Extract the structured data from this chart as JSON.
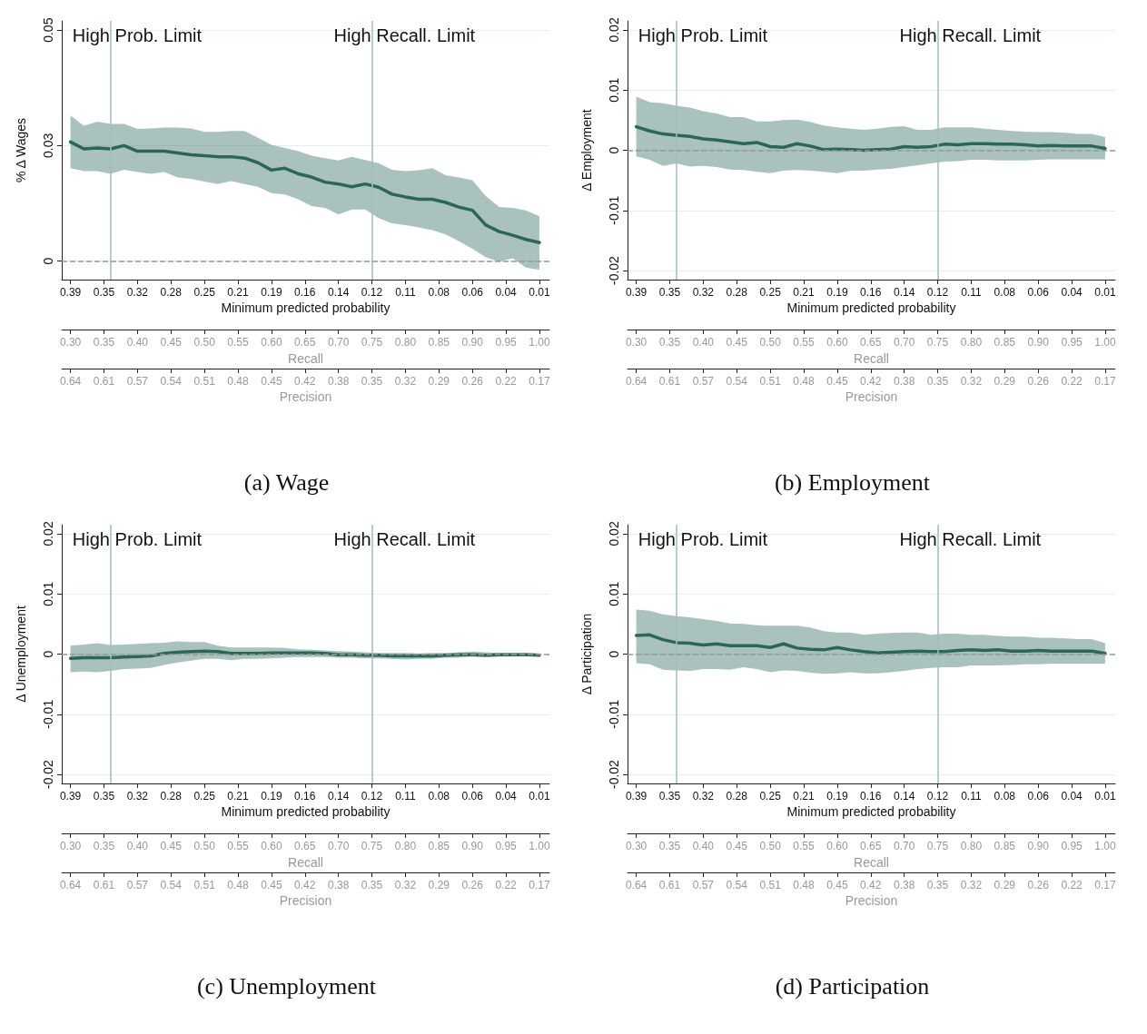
{
  "chart_data": [
    {
      "type": "line",
      "title": "(a) Wage",
      "ylabel": "% Δ Wages",
      "xlabel": "Recall",
      "x": [
        0.3,
        0.32,
        0.34,
        0.36,
        0.38,
        0.4,
        0.42,
        0.44,
        0.46,
        0.48,
        0.5,
        0.52,
        0.54,
        0.56,
        0.58,
        0.6,
        0.62,
        0.64,
        0.66,
        0.68,
        0.7,
        0.72,
        0.74,
        0.76,
        0.78,
        0.8,
        0.82,
        0.84,
        0.86,
        0.88,
        0.9,
        0.92,
        0.94,
        0.96,
        0.98,
        1.0
      ],
      "xlim": [
        0.287,
        1.015
      ],
      "xticks": [
        {
          "value": 0.3,
          "label": "0.30"
        },
        {
          "value": 0.35,
          "label": "0.35"
        },
        {
          "value": 0.4,
          "label": "0.40"
        },
        {
          "value": 0.45,
          "label": "0.45"
        },
        {
          "value": 0.5,
          "label": "0.50"
        },
        {
          "value": 0.55,
          "label": "0.55"
        },
        {
          "value": 0.6,
          "label": "0.60"
        },
        {
          "value": 0.65,
          "label": "0.65"
        },
        {
          "value": 0.7,
          "label": "0.70"
        },
        {
          "value": 0.75,
          "label": "0.75"
        },
        {
          "value": 0.8,
          "label": "0.80"
        },
        {
          "value": 0.85,
          "label": "0.85"
        },
        {
          "value": 0.9,
          "label": "0.90"
        },
        {
          "value": 0.95,
          "label": "0.95"
        },
        {
          "value": 1.0,
          "label": "1.00"
        }
      ],
      "annotations": [
        "0.39",
        "0.35",
        "0.32",
        "0.28",
        "0.25",
        "0.21",
        "0.19",
        "0.16",
        "0.14",
        "0.12",
        "0.11",
        "0.08",
        "0.06",
        "0.04",
        "0.01",
        "Minimum predicted probability",
        "0.64",
        "0.61",
        "0.57",
        "0.54",
        "0.51",
        "0.48",
        "0.45",
        "0.42",
        "0.38",
        "0.35",
        "0.32",
        "0.29",
        "0.26",
        "0.22",
        "0.17",
        "Precision"
      ],
      "ylim": [
        -0.004,
        0.052
      ],
      "yticks": [
        0,
        {
          "value": 0.025,
          "label": "0.03"
        },
        0.05
      ],
      "grid": "y",
      "ref_lines": [
        {
          "axis": "x",
          "value": 0.36,
          "label": "High Prob. Limit",
          "color": "#9dbfb9"
        },
        {
          "axis": "x",
          "value": 0.75,
          "label": "High Recall. Limit",
          "color": "#9dbfb9"
        },
        {
          "axis": "y",
          "value": 0,
          "color": "#999999",
          "line_style": "dashed"
        }
      ],
      "series": [
        {
          "color": "#2a6659",
          "values": [
            0.0258,
            0.0243,
            0.0245,
            0.0243,
            0.025,
            0.0238,
            0.0238,
            0.0238,
            0.0234,
            0.023,
            0.0228,
            0.0226,
            0.0226,
            0.0223,
            0.0213,
            0.0197,
            0.0201,
            0.0189,
            0.0182,
            0.0171,
            0.0167,
            0.0161,
            0.0167,
            0.016,
            0.0145,
            0.0139,
            0.0134,
            0.0134,
            0.0127,
            0.0117,
            0.011,
            0.0078,
            0.0064,
            0.0056,
            0.0047,
            0.004
          ],
          "upper": [
            0.0315,
            0.0293,
            0.0302,
            0.0297,
            0.0297,
            0.0286,
            0.0287,
            0.0289,
            0.0289,
            0.0287,
            0.028,
            0.028,
            0.0282,
            0.0282,
            0.0267,
            0.0252,
            0.0245,
            0.0238,
            0.0228,
            0.0223,
            0.0218,
            0.0226,
            0.0219,
            0.0212,
            0.0198,
            0.0195,
            0.0197,
            0.0201,
            0.0186,
            0.0181,
            0.0175,
            0.0141,
            0.0117,
            0.0115,
            0.011,
            0.0097
          ],
          "lower": [
            0.0201,
            0.0195,
            0.0195,
            0.0189,
            0.0198,
            0.0193,
            0.0189,
            0.0193,
            0.0181,
            0.0178,
            0.0172,
            0.0167,
            0.0173,
            0.0167,
            0.0161,
            0.0147,
            0.0144,
            0.0134,
            0.0119,
            0.0115,
            0.0101,
            0.0112,
            0.0112,
            0.0093,
            0.0082,
            0.0078,
            0.0073,
            0.0067,
            0.0058,
            0.0043,
            0.0027,
            0.0008,
            -0.0001,
            0.0006,
            -0.0014,
            -0.0019
          ]
        }
      ]
    },
    {
      "type": "line",
      "title": "(b) Employment",
      "ylabel": "Δ Employment",
      "xlabel": "Recall",
      "x": [
        0.3,
        0.32,
        0.34,
        0.36,
        0.38,
        0.4,
        0.42,
        0.44,
        0.46,
        0.48,
        0.5,
        0.52,
        0.54,
        0.56,
        0.58,
        0.6,
        0.62,
        0.64,
        0.66,
        0.68,
        0.7,
        0.72,
        0.74,
        0.76,
        0.78,
        0.8,
        0.82,
        0.84,
        0.86,
        0.88,
        0.9,
        0.92,
        0.94,
        0.96,
        0.98,
        1.0
      ],
      "xlim": [
        0.287,
        1.015
      ],
      "xticks": [
        {
          "value": 0.3,
          "label": "0.30"
        },
        {
          "value": 0.35,
          "label": "0.35"
        },
        {
          "value": 0.4,
          "label": "0.40"
        },
        {
          "value": 0.45,
          "label": "0.45"
        },
        {
          "value": 0.5,
          "label": "0.50"
        },
        {
          "value": 0.55,
          "label": "0.55"
        },
        {
          "value": 0.6,
          "label": "0.60"
        },
        {
          "value": 0.65,
          "label": "0.65"
        },
        {
          "value": 0.7,
          "label": "0.70"
        },
        {
          "value": 0.75,
          "label": "0.75"
        },
        {
          "value": 0.8,
          "label": "0.80"
        },
        {
          "value": 0.85,
          "label": "0.85"
        },
        {
          "value": 0.9,
          "label": "0.90"
        },
        {
          "value": 0.95,
          "label": "0.95"
        },
        {
          "value": 1.0,
          "label": "1.00"
        }
      ],
      "annotations": [
        "0.39",
        "0.35",
        "0.32",
        "0.28",
        "0.25",
        "0.21",
        "0.19",
        "0.16",
        "0.14",
        "0.12",
        "0.11",
        "0.08",
        "0.06",
        "0.04",
        "0.01",
        "Minimum predicted probability",
        "0.64",
        "0.61",
        "0.57",
        "0.54",
        "0.51",
        "0.48",
        "0.45",
        "0.42",
        "0.38",
        "0.35",
        "0.32",
        "0.29",
        "0.26",
        "0.22",
        "0.17",
        "Precision"
      ],
      "ylim": [
        -0.0215,
        0.0215
      ],
      "yticks": [
        -0.02,
        -0.01,
        0,
        0.01,
        0.02
      ],
      "grid": "y",
      "ref_lines": [
        {
          "axis": "x",
          "value": 0.36,
          "label": "High Prob. Limit",
          "color": "#9dbfb9"
        },
        {
          "axis": "x",
          "value": 0.75,
          "label": "High Recall. Limit",
          "color": "#9dbfb9"
        },
        {
          "axis": "y",
          "value": 0,
          "color": "#999999",
          "line_style": "dashed"
        }
      ],
      "series": [
        {
          "color": "#2a6659",
          "values": [
            0.0039,
            0.0032,
            0.0027,
            0.0025,
            0.0023,
            0.0019,
            0.0017,
            0.0014,
            0.0011,
            0.0013,
            0.0006,
            0.0005,
            0.0011,
            0.0007,
            0.0001,
            0.0002,
            0.0001,
            0,
            0.0001,
            0.0002,
            0.0006,
            0.0005,
            0.0006,
            0.001,
            0.0009,
            0.0011,
            0.0011,
            0.001,
            0.001,
            0.0009,
            0.0007,
            0.0008,
            0.0007,
            0.0007,
            0.0007,
            0.0003
          ],
          "upper": [
            0.0089,
            0.008,
            0.0078,
            0.0074,
            0.0071,
            0.0065,
            0.0061,
            0.0055,
            0.0055,
            0.0048,
            0.0048,
            0.005,
            0.0051,
            0.0047,
            0.0041,
            0.0038,
            0.0036,
            0.0034,
            0.0036,
            0.0039,
            0.004,
            0.0034,
            0.0034,
            0.0038,
            0.0038,
            0.0038,
            0.0036,
            0.0034,
            0.0032,
            0.0031,
            0.003,
            0.003,
            0.0029,
            0.0027,
            0.0027,
            0.0022
          ],
          "lower": [
            -0.001,
            -0.0016,
            -0.0026,
            -0.0022,
            -0.0027,
            -0.0026,
            -0.0028,
            -0.0032,
            -0.0033,
            -0.0036,
            -0.0038,
            -0.0034,
            -0.0033,
            -0.0034,
            -0.0036,
            -0.0038,
            -0.0034,
            -0.0034,
            -0.0032,
            -0.0031,
            -0.0028,
            -0.0025,
            -0.0022,
            -0.0019,
            -0.0018,
            -0.0016,
            -0.0016,
            -0.0017,
            -0.0017,
            -0.0017,
            -0.0016,
            -0.0015,
            -0.0015,
            -0.0015,
            -0.0015,
            -0.0015
          ]
        }
      ]
    },
    {
      "type": "line",
      "title": "(c) Unemployment",
      "ylabel": "Δ Unemployment",
      "xlabel": "Recall",
      "x": [
        0.3,
        0.32,
        0.34,
        0.36,
        0.38,
        0.4,
        0.42,
        0.44,
        0.46,
        0.48,
        0.5,
        0.52,
        0.54,
        0.56,
        0.58,
        0.6,
        0.62,
        0.64,
        0.66,
        0.68,
        0.7,
        0.72,
        0.74,
        0.76,
        0.78,
        0.8,
        0.82,
        0.84,
        0.86,
        0.88,
        0.9,
        0.92,
        0.94,
        0.96,
        0.98,
        1.0
      ],
      "xlim": [
        0.287,
        1.015
      ],
      "xticks": [
        {
          "value": 0.3,
          "label": "0.30"
        },
        {
          "value": 0.35,
          "label": "0.35"
        },
        {
          "value": 0.4,
          "label": "0.40"
        },
        {
          "value": 0.45,
          "label": "0.45"
        },
        {
          "value": 0.5,
          "label": "0.50"
        },
        {
          "value": 0.55,
          "label": "0.55"
        },
        {
          "value": 0.6,
          "label": "0.60"
        },
        {
          "value": 0.65,
          "label": "0.65"
        },
        {
          "value": 0.7,
          "label": "0.70"
        },
        {
          "value": 0.75,
          "label": "0.75"
        },
        {
          "value": 0.8,
          "label": "0.80"
        },
        {
          "value": 0.85,
          "label": "0.85"
        },
        {
          "value": 0.9,
          "label": "0.90"
        },
        {
          "value": 0.95,
          "label": "0.95"
        },
        {
          "value": 1.0,
          "label": "1.00"
        }
      ],
      "annotations": [
        "0.39",
        "0.35",
        "0.32",
        "0.28",
        "0.25",
        "0.21",
        "0.19",
        "0.16",
        "0.14",
        "0.12",
        "0.11",
        "0.08",
        "0.06",
        "0.04",
        "0.01",
        "Minimum predicted probability",
        "0.64",
        "0.61",
        "0.57",
        "0.54",
        "0.51",
        "0.48",
        "0.45",
        "0.42",
        "0.38",
        "0.35",
        "0.32",
        "0.29",
        "0.26",
        "0.22",
        "0.17",
        "Precision"
      ],
      "ylim": [
        -0.0215,
        0.0215
      ],
      "yticks": [
        -0.02,
        -0.01,
        0,
        0.01,
        0.02
      ],
      "grid": "y",
      "ref_lines": [
        {
          "axis": "x",
          "value": 0.36,
          "label": "High Prob. Limit",
          "color": "#9dbfb9"
        },
        {
          "axis": "x",
          "value": 0.75,
          "label": "High Recall. Limit",
          "color": "#9dbfb9"
        },
        {
          "axis": "y",
          "value": 0,
          "color": "#999999",
          "line_style": "dashed"
        }
      ],
      "series": [
        {
          "color": "#2a6659",
          "values": [
            -0.0007,
            -0.0006,
            -0.0006,
            -0.0006,
            -0.0005,
            -0.0004,
            -0.0003,
            0.0001,
            0.0003,
            0.0004,
            0.0005,
            0.0004,
            0.0001,
            0.0001,
            0.0001,
            0.0002,
            0.0002,
            0.0002,
            0.0002,
            0.0001,
            -0.0001,
            -0.0001,
            -0.0002,
            -0.0002,
            -0.0003,
            -0.0003,
            -0.0003,
            -0.0003,
            -0.0002,
            -0.0001,
            -0.0001,
            -0.0002,
            -0.0001,
            -0.0001,
            -0.0001,
            -0.0002
          ],
          "upper": [
            0.0014,
            0.0016,
            0.0018,
            0.0015,
            0.0016,
            0.0017,
            0.0018,
            0.0019,
            0.0021,
            0.002,
            0.002,
            0.0014,
            0.0011,
            0.0011,
            0.0011,
            0.0011,
            0.001,
            0.0008,
            0.0007,
            0.0006,
            0.0005,
            0.0004,
            0.0003,
            0.0002,
            0.0002,
            0.0002,
            0.0001,
            0.0002,
            0.0002,
            0.0003,
            0.0004,
            0.0003,
            0.0002,
            0.0002,
            0.0002,
            0.0001
          ],
          "lower": [
            -0.003,
            -0.0029,
            -0.003,
            -0.0028,
            -0.0025,
            -0.0024,
            -0.0023,
            -0.0018,
            -0.0014,
            -0.0011,
            -0.0008,
            -0.0008,
            -0.001,
            -0.0008,
            -0.0008,
            -0.0007,
            -0.0006,
            -0.0005,
            -0.0005,
            -0.0005,
            -0.0006,
            -0.0006,
            -0.0007,
            -0.0007,
            -0.0008,
            -0.0009,
            -0.0008,
            -0.0008,
            -0.0006,
            -0.0006,
            -0.0004,
            -0.0005,
            -0.0004,
            -0.0004,
            -0.0003,
            -0.0003
          ]
        }
      ]
    },
    {
      "type": "line",
      "title": "(d) Participation",
      "ylabel": "Δ Participation",
      "xlabel": "Recall",
      "x": [
        0.3,
        0.32,
        0.34,
        0.36,
        0.38,
        0.4,
        0.42,
        0.44,
        0.46,
        0.48,
        0.5,
        0.52,
        0.54,
        0.56,
        0.58,
        0.6,
        0.62,
        0.64,
        0.66,
        0.68,
        0.7,
        0.72,
        0.74,
        0.76,
        0.78,
        0.8,
        0.82,
        0.84,
        0.86,
        0.88,
        0.9,
        0.92,
        0.94,
        0.96,
        0.98,
        1.0
      ],
      "xlim": [
        0.287,
        1.015
      ],
      "xticks": [
        {
          "value": 0.3,
          "label": "0.30"
        },
        {
          "value": 0.35,
          "label": "0.35"
        },
        {
          "value": 0.4,
          "label": "0.40"
        },
        {
          "value": 0.45,
          "label": "0.45"
        },
        {
          "value": 0.5,
          "label": "0.50"
        },
        {
          "value": 0.55,
          "label": "0.55"
        },
        {
          "value": 0.6,
          "label": "0.60"
        },
        {
          "value": 0.65,
          "label": "0.65"
        },
        {
          "value": 0.7,
          "label": "0.70"
        },
        {
          "value": 0.75,
          "label": "0.75"
        },
        {
          "value": 0.8,
          "label": "0.80"
        },
        {
          "value": 0.85,
          "label": "0.85"
        },
        {
          "value": 0.9,
          "label": "0.90"
        },
        {
          "value": 0.95,
          "label": "0.95"
        },
        {
          "value": 1.0,
          "label": "1.00"
        }
      ],
      "annotations": [
        "0.39",
        "0.35",
        "0.32",
        "0.28",
        "0.25",
        "0.21",
        "0.19",
        "0.16",
        "0.14",
        "0.12",
        "0.11",
        "0.08",
        "0.06",
        "0.04",
        "0.01",
        "Minimum predicted probability",
        "0.64",
        "0.61",
        "0.57",
        "0.54",
        "0.51",
        "0.48",
        "0.45",
        "0.42",
        "0.38",
        "0.35",
        "0.32",
        "0.29",
        "0.26",
        "0.22",
        "0.17",
        "Precision"
      ],
      "ylim": [
        -0.0215,
        0.0215
      ],
      "yticks": [
        -0.02,
        -0.01,
        0,
        0.01,
        0.02
      ],
      "grid": "y",
      "ref_lines": [
        {
          "axis": "x",
          "value": 0.36,
          "label": "High Prob. Limit",
          "color": "#9dbfb9"
        },
        {
          "axis": "x",
          "value": 0.75,
          "label": "High Recall. Limit",
          "color": "#9dbfb9"
        },
        {
          "axis": "y",
          "value": 0,
          "color": "#999999",
          "line_style": "dashed"
        }
      ],
      "series": [
        {
          "color": "#2a6659",
          "values": [
            0.0031,
            0.0032,
            0.0024,
            0.0019,
            0.0018,
            0.0015,
            0.0017,
            0.0014,
            0.0014,
            0.0014,
            0.0011,
            0.0017,
            0.001,
            0.0008,
            0.0007,
            0.0011,
            0.0007,
            0.0004,
            0.0002,
            0.0003,
            0.0004,
            0.0005,
            0.0004,
            0.0004,
            0.0006,
            0.0007,
            0.0006,
            0.0007,
            0.0005,
            0.0005,
            0.0006,
            0.0005,
            0.0005,
            0.0005,
            0.0005,
            0.0001
          ],
          "upper": [
            0.0074,
            0.0072,
            0.0066,
            0.0063,
            0.0061,
            0.0058,
            0.0055,
            0.0051,
            0.005,
            0.0048,
            0.0047,
            0.0047,
            0.0047,
            0.0044,
            0.0038,
            0.0036,
            0.0036,
            0.0032,
            0.0034,
            0.0035,
            0.0036,
            0.0036,
            0.0032,
            0.0034,
            0.0034,
            0.0032,
            0.0032,
            0.003,
            0.0029,
            0.0029,
            0.0027,
            0.0027,
            0.0026,
            0.0025,
            0.0025,
            0.0018
          ],
          "lower": [
            -0.0015,
            -0.0017,
            -0.0026,
            -0.0027,
            -0.0028,
            -0.0025,
            -0.0025,
            -0.0026,
            -0.0022,
            -0.0025,
            -0.003,
            -0.0027,
            -0.0028,
            -0.0031,
            -0.0033,
            -0.0032,
            -0.003,
            -0.0032,
            -0.0032,
            -0.003,
            -0.0028,
            -0.0025,
            -0.0023,
            -0.0022,
            -0.0022,
            -0.0019,
            -0.0019,
            -0.0019,
            -0.0018,
            -0.0017,
            -0.0017,
            -0.0016,
            -0.0016,
            -0.0016,
            -0.0016,
            -0.0016
          ]
        }
      ]
    }
  ]
}
